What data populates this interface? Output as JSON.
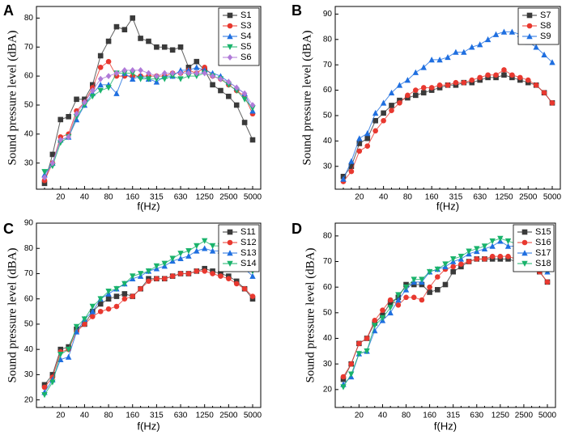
{
  "chart_data": [
    {
      "type": "line",
      "panel": "A",
      "x_label": "f(Hz)",
      "y_label": "Sound pressure level (dBA)",
      "categories": [
        null,
        null,
        "20",
        null,
        null,
        "40",
        null,
        null,
        "80",
        null,
        null,
        "160",
        null,
        null,
        "315",
        null,
        null,
        "630",
        null,
        null,
        "1250",
        null,
        null,
        "2500",
        null,
        null,
        "5000"
      ],
      "ylim": [
        21,
        84
      ],
      "yticks": [
        30,
        40,
        50,
        60,
        70,
        80
      ],
      "legend": "upper right",
      "series": [
        {
          "name": "S1",
          "color": "#3a3a3a",
          "marker": "square",
          "values": [
            23,
            33,
            45,
            46,
            52,
            52,
            57,
            67,
            72,
            77,
            76,
            80,
            73,
            72,
            70,
            70,
            69,
            70,
            63,
            65,
            62,
            57,
            55,
            53,
            50,
            44,
            38
          ]
        },
        {
          "name": "S3",
          "color": "#e8382f",
          "marker": "circle",
          "values": [
            24,
            30,
            39,
            40,
            48,
            51,
            56,
            63,
            65,
            60,
            60,
            60,
            60,
            60,
            60,
            60,
            61,
            61,
            62,
            61,
            63,
            60,
            59,
            57,
            55,
            53,
            47
          ]
        },
        {
          "name": "S4",
          "color": "#1f6fe0",
          "marker": "triangle-up",
          "values": [
            26,
            30,
            38,
            39,
            45,
            50,
            54,
            57,
            57,
            54,
            61,
            59,
            60,
            59,
            58,
            60,
            60,
            62,
            62,
            63,
            62,
            61,
            60,
            58,
            56,
            54,
            48
          ]
        },
        {
          "name": "S5",
          "color": "#19b36b",
          "marker": "triangle-down",
          "values": [
            27,
            29,
            37,
            39,
            46,
            50,
            53,
            55,
            56,
            61,
            61,
            61,
            59,
            59,
            59,
            59,
            60,
            59,
            60,
            60,
            61,
            60,
            59,
            57,
            55,
            52,
            49
          ]
        },
        {
          "name": "S6",
          "color": "#b07ad8",
          "marker": "diamond",
          "values": [
            25,
            30,
            38,
            39,
            47,
            51,
            55,
            59,
            60,
            61,
            62,
            62,
            62,
            61,
            60,
            61,
            61,
            61,
            61,
            61,
            61,
            60,
            59,
            58,
            56,
            54,
            50
          ]
        }
      ]
    },
    {
      "type": "line",
      "panel": "B",
      "x_label": "f(Hz)",
      "y_label": "Sound pressure level (dBA)",
      "categories": [
        null,
        null,
        "20",
        null,
        null,
        "40",
        null,
        null,
        "80",
        null,
        null,
        "160",
        null,
        null,
        "315",
        null,
        null,
        "630",
        null,
        null,
        "1250",
        null,
        null,
        "2500",
        null,
        null,
        "5000"
      ],
      "ylim": [
        21,
        93
      ],
      "yticks": [
        30,
        40,
        50,
        60,
        70,
        80,
        90
      ],
      "legend": "upper right",
      "series": [
        {
          "name": "S7",
          "color": "#3a3a3a",
          "marker": "square",
          "values": [
            26,
            30,
            39,
            41,
            48,
            51,
            54,
            56,
            57,
            58,
            59,
            60,
            61,
            62,
            62,
            63,
            63,
            64,
            65,
            65,
            66,
            65,
            64,
            63,
            62,
            59,
            55
          ]
        },
        {
          "name": "S8",
          "color": "#e8382f",
          "marker": "circle",
          "values": [
            24,
            28,
            36,
            38,
            44,
            48,
            52,
            55,
            58,
            60,
            61,
            61,
            62,
            62,
            63,
            63,
            64,
            65,
            66,
            66,
            68,
            66,
            65,
            64,
            62,
            59,
            55
          ]
        },
        {
          "name": "S9",
          "color": "#1f6fe0",
          "marker": "triangle-up",
          "values": [
            25,
            32,
            41,
            43,
            51,
            55,
            59,
            62,
            64,
            67,
            69,
            72,
            72,
            73,
            75,
            75,
            77,
            78,
            80,
            82,
            83,
            83,
            82,
            79,
            77,
            74,
            71
          ]
        }
      ]
    },
    {
      "type": "line",
      "panel": "C",
      "x_label": "f(Hz)",
      "y_label": "Sound pressure level (dBA)",
      "categories": [
        null,
        null,
        "20",
        null,
        null,
        "40",
        null,
        null,
        "80",
        null,
        null,
        "160",
        null,
        null,
        "315",
        null,
        null,
        "630",
        null,
        null,
        "1250",
        null,
        null,
        "2500",
        null,
        null,
        "5000"
      ],
      "ylim": [
        17,
        90
      ],
      "yticks": [
        20,
        30,
        40,
        50,
        60,
        70,
        80,
        90
      ],
      "legend": "upper right",
      "series": [
        {
          "name": "S11",
          "color": "#3a3a3a",
          "marker": "square",
          "values": [
            26,
            30,
            40,
            41,
            48,
            50,
            55,
            58,
            60,
            61,
            62,
            61,
            64,
            68,
            68,
            68,
            69,
            70,
            70,
            71,
            72,
            71,
            70,
            69,
            67,
            64,
            60
          ]
        },
        {
          "name": "S12",
          "color": "#e8382f",
          "marker": "circle",
          "values": [
            25,
            29,
            39,
            40,
            47,
            50,
            53,
            55,
            56,
            57,
            60,
            61,
            64,
            67,
            68,
            68,
            69,
            70,
            70,
            71,
            71,
            70,
            69,
            68,
            66,
            64,
            61
          ]
        },
        {
          "name": "S13",
          "color": "#1f6fe0",
          "marker": "triangle-up",
          "values": [
            23,
            28,
            36,
            37,
            47,
            52,
            55,
            60,
            62,
            64,
            66,
            68,
            69,
            71,
            72,
            73,
            75,
            76,
            77,
            79,
            80,
            79,
            79,
            77,
            74,
            72,
            69
          ]
        },
        {
          "name": "S14",
          "color": "#19b36b",
          "marker": "triangle-down",
          "values": [
            22,
            27,
            38,
            40,
            49,
            52,
            57,
            60,
            63,
            64,
            66,
            69,
            70,
            71,
            73,
            74,
            76,
            78,
            79,
            81,
            83,
            81,
            81,
            80,
            77,
            75,
            71
          ]
        }
      ]
    },
    {
      "type": "line",
      "panel": "D",
      "x_label": "f(Hz)",
      "y_label": "Sound pressure level (dBA)",
      "categories": [
        null,
        null,
        "20",
        null,
        null,
        "40",
        null,
        null,
        "80",
        null,
        null,
        "160",
        null,
        null,
        "315",
        null,
        null,
        "630",
        null,
        null,
        "1250",
        null,
        null,
        "2500",
        null,
        null,
        "5000"
      ],
      "ylim": [
        13,
        85
      ],
      "yticks": [
        20,
        30,
        40,
        50,
        60,
        70,
        80
      ],
      "legend": "upper right",
      "series": [
        {
          "name": "S15",
          "color": "#3a3a3a",
          "marker": "square",
          "values": [
            24,
            30,
            38,
            40,
            46,
            49,
            54,
            56,
            61,
            61,
            61,
            58,
            59,
            61,
            66,
            68,
            70,
            71,
            71,
            71,
            71,
            71,
            70,
            69,
            68,
            66,
            62
          ]
        },
        {
          "name": "S16",
          "color": "#e8382f",
          "marker": "circle",
          "values": [
            25,
            30,
            38,
            40,
            47,
            51,
            55,
            53,
            56,
            56,
            55,
            60,
            64,
            67,
            68,
            69,
            70,
            71,
            71,
            72,
            72,
            72,
            71,
            70,
            68,
            66,
            62
          ]
        },
        {
          "name": "S17",
          "color": "#1f6fe0",
          "marker": "triangle-up",
          "values": [
            22,
            25,
            34,
            35,
            43,
            47,
            50,
            55,
            59,
            62,
            62,
            66,
            67,
            68,
            70,
            71,
            73,
            74,
            75,
            76,
            78,
            76,
            76,
            74,
            72,
            68,
            66
          ]
        },
        {
          "name": "S18",
          "color": "#19b36b",
          "marker": "triangle-down",
          "values": [
            21,
            26,
            34,
            35,
            45,
            48,
            52,
            57,
            60,
            63,
            63,
            66,
            67,
            69,
            71,
            72,
            74,
            75,
            76,
            78,
            79,
            78,
            77,
            75,
            73,
            70,
            67
          ]
        }
      ]
    }
  ]
}
